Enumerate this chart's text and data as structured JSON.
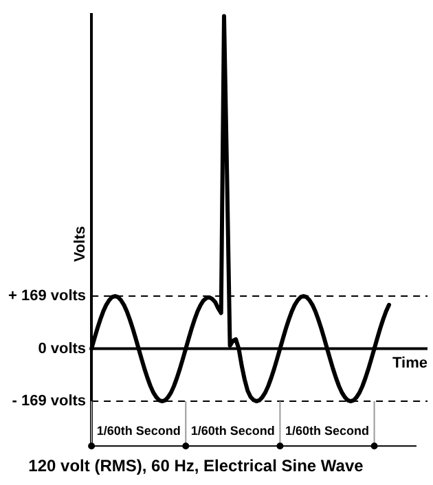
{
  "chart_data": {
    "type": "line",
    "title": "120 volt (RMS), 60 Hz, Electrical Sine Wave",
    "xlabel": "Time",
    "ylabel": "Volts",
    "categories": [
      null,
      null,
      null,
      null,
      null,
      null,
      null,
      null,
      null,
      null,
      null,
      null,
      null,
      null,
      null,
      null,
      null,
      null,
      null,
      null,
      null,
      null,
      null,
      null,
      null,
      null,
      null,
      null,
      null,
      null,
      null,
      null,
      null,
      null,
      null,
      null,
      null,
      null,
      null,
      null,
      null,
      null,
      null,
      null,
      null,
      null,
      null,
      null,
      null,
      null,
      null,
      null,
      null,
      null,
      null,
      null,
      null,
      null,
      null,
      null,
      null,
      null,
      null,
      null,
      null,
      null,
      null,
      null,
      null,
      null,
      null,
      null,
      null,
      null,
      null,
      null,
      null,
      null,
      null,
      null,
      null,
      null,
      null,
      null,
      null,
      null,
      null,
      null,
      null,
      null,
      null,
      null,
      null,
      null,
      null,
      null,
      null,
      null,
      null,
      null,
      null,
      null
    ],
    "values": [
      0,
      33,
      65,
      94,
      120,
      141,
      156,
      166,
      169,
      166,
      156,
      141,
      120,
      94,
      65,
      33,
      0,
      -33,
      -65,
      -94,
      -120,
      -141,
      -156,
      -166,
      -169,
      -166,
      -156,
      -141,
      -120,
      -94,
      -65,
      -33,
      0,
      33,
      65,
      94,
      120,
      140,
      155,
      163,
      165,
      160,
      150,
      130,
      115,
      1070,
      560,
      10,
      25,
      30,
      0,
      -55,
      -100,
      -135,
      -155,
      -165,
      -169,
      -166,
      -156,
      -141,
      -120,
      -94,
      -65,
      -33,
      0,
      33,
      65,
      94,
      120,
      141,
      156,
      166,
      169,
      166,
      156,
      141,
      120,
      94,
      65,
      33,
      0,
      -33,
      -65,
      -94,
      -120,
      -141,
      -156,
      -166,
      -169,
      -166,
      -156,
      -141,
      -120,
      -94,
      -65,
      -33,
      0,
      33,
      65,
      94,
      120,
      141
    ],
    "color": "#000000",
    "marker": "none",
    "line_style": "solid",
    "grid": false,
    "legend": false,
    "tick_labels": "y",
    "ylim": [
      -313,
      1075
    ],
    "yticks": [
      {
        "value": -169,
        "label": "- 169 volts"
      },
      {
        "value": 0,
        "label": "0 volts"
      },
      {
        "value": 169,
        "label": "+ 169 volts"
      }
    ],
    "ref_lines": [
      {
        "axis": "y",
        "value": 169,
        "line_style": "dashed",
        "color": "#000000"
      },
      {
        "axis": "y",
        "value": 0,
        "line_style": "solid",
        "color": "#000000"
      },
      {
        "axis": "y",
        "value": -169,
        "line_style": "dashed",
        "color": "#000000"
      }
    ],
    "annotations": [
      "1/60th Second",
      "1/60th Second",
      "1/60th Second"
    ]
  }
}
